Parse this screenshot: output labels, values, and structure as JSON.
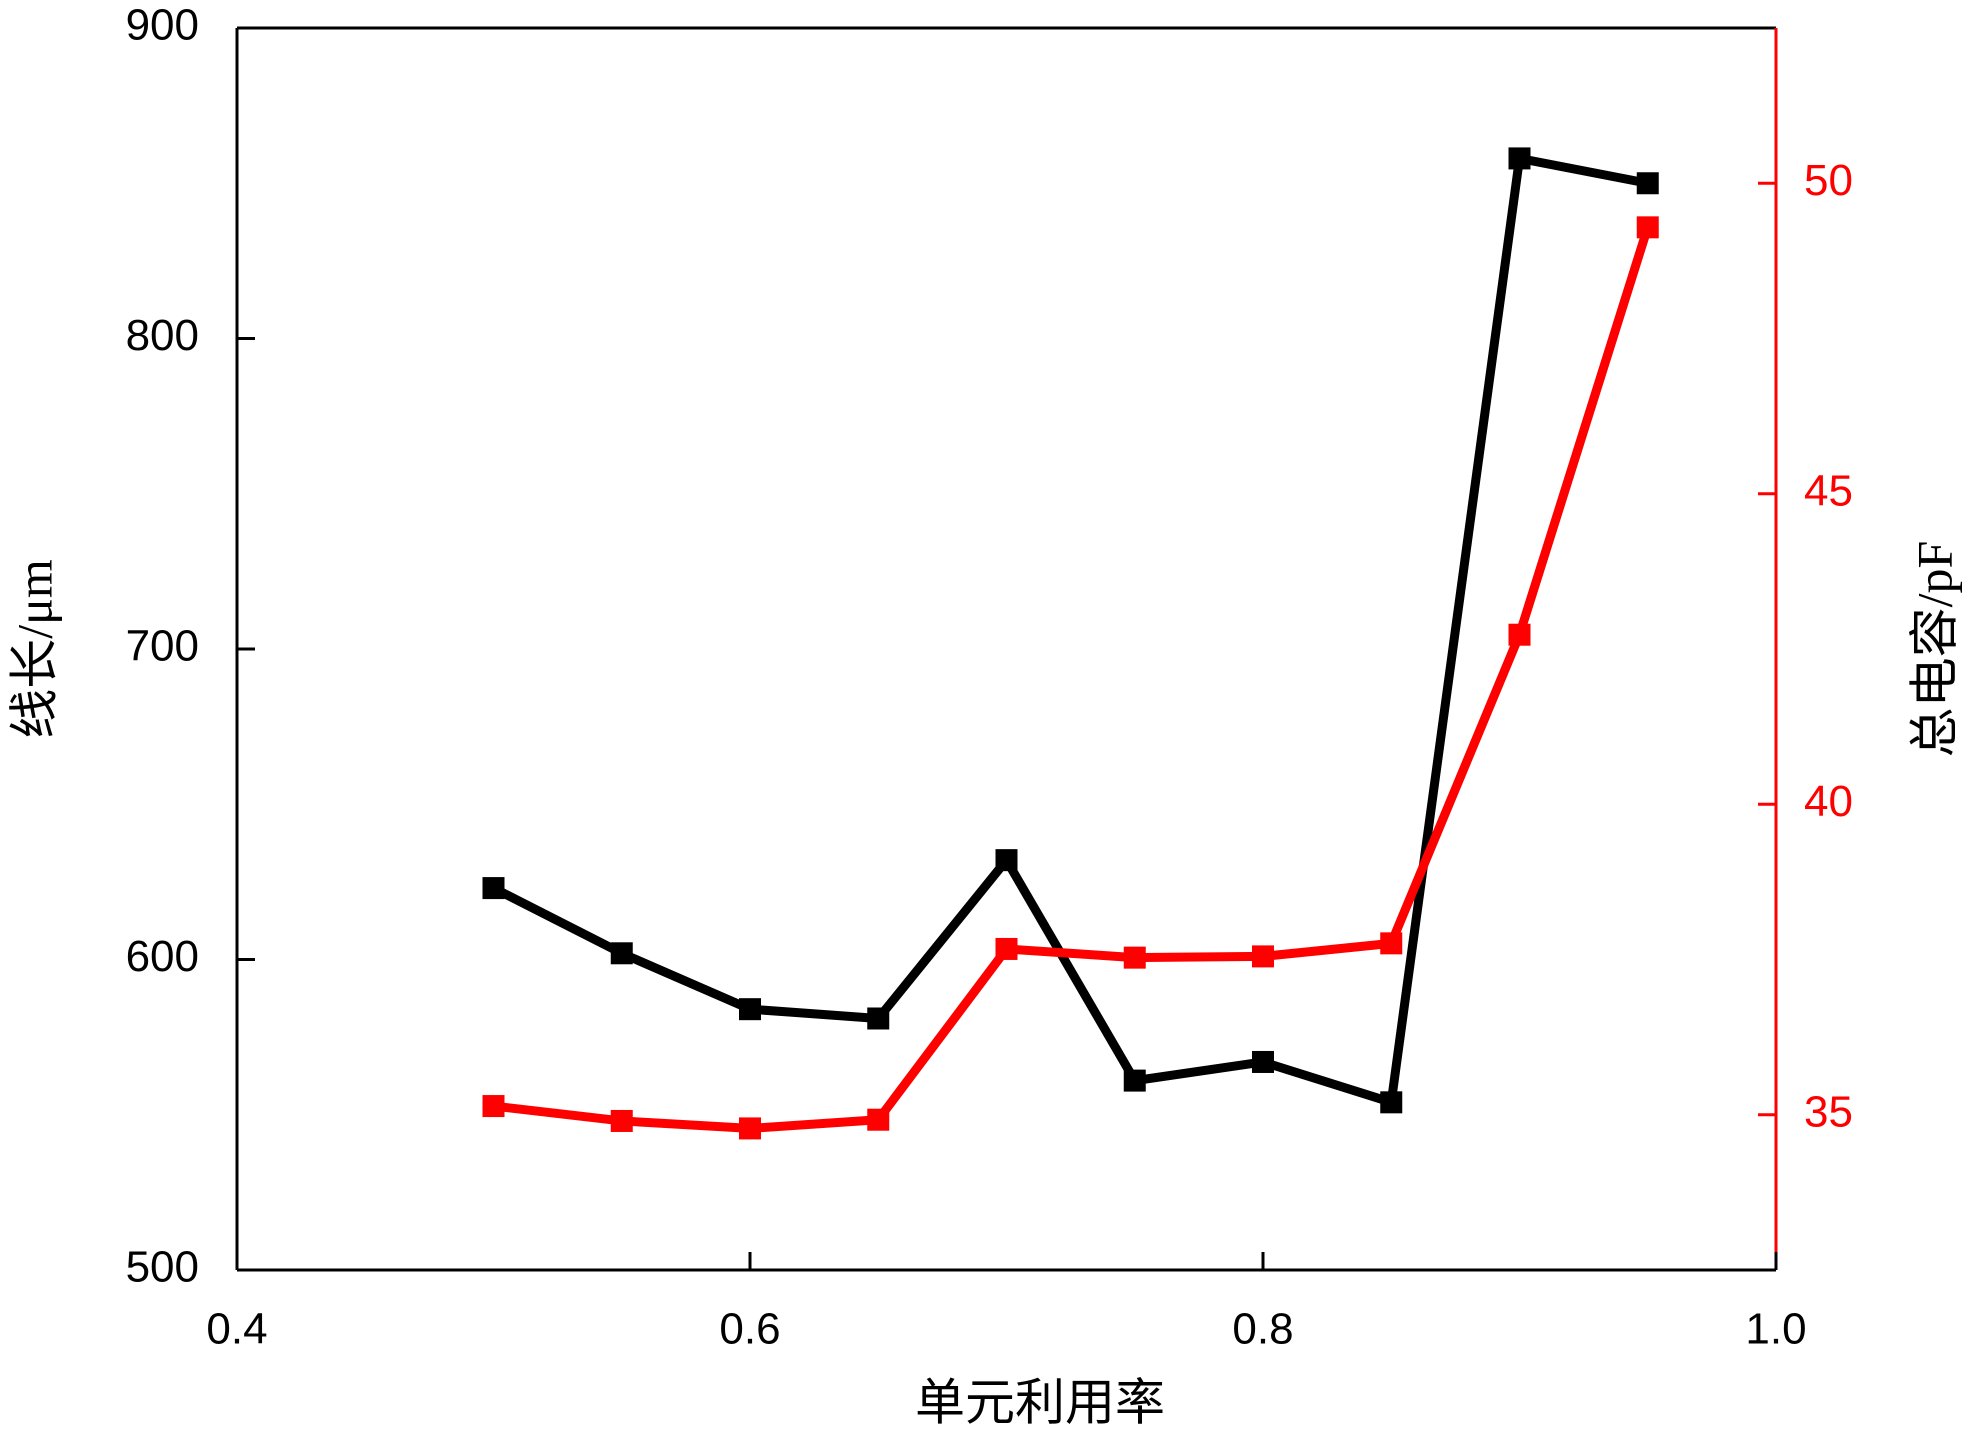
{
  "chart_data": {
    "type": "line",
    "xlabel": "单元利用率",
    "ylabel": "线长/μm",
    "y2label": "总电容/pF",
    "x": [
      0.5,
      0.55,
      0.6,
      0.65,
      0.7,
      0.75,
      0.8,
      0.85,
      0.9,
      0.95
    ],
    "series": [
      {
        "color": "#000000",
        "values": [
          623,
          602,
          584,
          581,
          632,
          561,
          567,
          554,
          858,
          850
        ]
      },
      {
        "color": "#ff0000",
        "axis": "y2",
        "values": [
          35.14,
          34.9,
          34.78,
          34.92,
          37.67,
          37.53,
          37.55,
          37.76,
          42.73,
          49.29
        ]
      }
    ],
    "xlim": [
      0.4,
      1
    ],
    "xticks": [
      0.4,
      0.6,
      0.8,
      {
        "value": 1,
        "label": "1.0"
      }
    ],
    "ylim": [
      500,
      900
    ],
    "yticks": [
      500,
      600,
      700,
      800,
      900
    ],
    "y2lim": [
      32.5,
      52.5
    ],
    "y2ticks": [
      35,
      40,
      45,
      50
    ],
    "y2color": "#ff0000"
  }
}
